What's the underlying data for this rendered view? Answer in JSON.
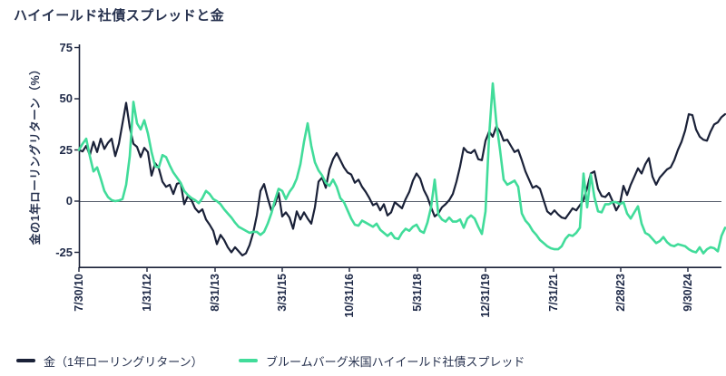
{
  "chart": {
    "title": "ハイイールド社債スプレッドと金",
    "y_axis": {
      "label": "金の1年ローリングリターン（%）",
      "ticks": [
        "75",
        "50",
        "25",
        "0",
        "-25"
      ]
    },
    "x_axis": {
      "ticks": [
        "7/30/10",
        "1/31/12",
        "8/31/13",
        "3/31/15",
        "10/31/16",
        "5/31/18",
        "12/31/19",
        "7/31/21",
        "2/28/23",
        "9/30/24"
      ]
    },
    "legend": {
      "gold": "金（1年ローリングリターン）",
      "spread": "ブルームバーグ米国ハイイールド社債スプレッド"
    }
  },
  "colors": {
    "gold_line": "#1a2138",
    "spread_line": "#41dc9a",
    "axis": "#1a2138",
    "zero_line": "#545b69",
    "tick_text": "#1e2947",
    "title_text": "#27324f"
  },
  "chart_data": {
    "type": "line",
    "title": "ハイイールド社債スプレッドと金",
    "xlabel": "",
    "ylabel": "金の1年ローリングリターン（%）",
    "ylim": [
      -32,
      76
    ],
    "y_ticks": [
      75,
      50,
      25,
      0,
      -25
    ],
    "zero_line": true,
    "grid": false,
    "legend_position": "bottom",
    "x_tick_labels": [
      "7/30/10",
      "1/31/12",
      "8/31/13",
      "3/31/15",
      "10/31/16",
      "5/31/18",
      "12/31/19",
      "7/31/21",
      "2/28/23",
      "9/30/24"
    ],
    "x_tick_indices": [
      0,
      18.75,
      37.5,
      56,
      74.5,
      93.25,
      112,
      130.75,
      149.25,
      167.75
    ],
    "series": [
      {
        "name": "金（1年ローリングリターン）",
        "color": "#1a2138",
        "values": [
          25,
          24.3,
          27,
          22.5,
          29,
          24,
          30.5,
          25.5,
          28.5,
          30.5,
          22,
          28,
          38,
          48,
          36,
          28,
          26.5,
          21.5,
          26,
          24,
          12.5,
          18.5,
          16,
          9.5,
          7,
          8,
          3.5,
          8.5,
          9,
          -1.5,
          2.5,
          0.5,
          -3.5,
          -5.5,
          -4,
          -9,
          -11.5,
          -14.5,
          -21,
          -16.5,
          -19,
          -22.5,
          -25,
          -22.5,
          -24.5,
          -26.5,
          -25.5,
          -21.5,
          -15.5,
          -7,
          5,
          8.3,
          1.5,
          -4.5,
          -1.5,
          4,
          -7.5,
          -5.5,
          -8,
          -13.5,
          -5,
          -9,
          -5.5,
          -8.5,
          -11,
          -3,
          9.5,
          11.5,
          6.5,
          15.5,
          20.5,
          23.5,
          20,
          16.5,
          14,
          13,
          9,
          10.5,
          7,
          4.5,
          1.5,
          -2,
          -1,
          -4.5,
          -1.5,
          -7,
          -5.5,
          -0.5,
          -2,
          -3.5,
          1,
          4.5,
          10,
          13.5,
          11,
          5.5,
          2,
          -3,
          -7.5,
          -6,
          -3,
          -1.5,
          0.5,
          3.5,
          9.5,
          17,
          26,
          24,
          23.5,
          25,
          20.5,
          20,
          29.5,
          34,
          31.5,
          36.5,
          34,
          29.5,
          30,
          27,
          24,
          25,
          20,
          14.5,
          10.5,
          6.5,
          7.5,
          6,
          0.5,
          -5,
          -6.5,
          -4.5,
          -6.5,
          -8,
          -8.5,
          -6,
          -3.5,
          -4.5,
          -2,
          0.5,
          6.5,
          13.5,
          14.5,
          6,
          2.5,
          2,
          4,
          0,
          -4.5,
          -1.5,
          7.5,
          3,
          8,
          12,
          16,
          13.5,
          18,
          21,
          12,
          8,
          11.5,
          13.5,
          15.5,
          16.5,
          20,
          25,
          29,
          34.5,
          42.5,
          42,
          35,
          31.5,
          30,
          29.5,
          34,
          37.5,
          38.5,
          41,
          42.5
        ]
      },
      {
        "name": "ブルームバーグ米国ハイイールド社債スプレッド",
        "color": "#41dc9a",
        "values": [
          25,
          28,
          30.5,
          22,
          14.5,
          16.5,
          11,
          5,
          2,
          0.5,
          0,
          0.3,
          1,
          8,
          22,
          48.5,
          38,
          35,
          39.5,
          33,
          24,
          17,
          16.5,
          22.5,
          21.5,
          17.5,
          14,
          11.5,
          9,
          5,
          3,
          1.5,
          0.5,
          -1,
          1.5,
          5,
          3.5,
          1,
          0,
          -1.5,
          -4,
          -6,
          -8,
          -10.5,
          -12.5,
          -13.5,
          -14.5,
          -15.5,
          -15,
          -15,
          -16.5,
          -15,
          -11,
          -6,
          0.5,
          6,
          5,
          1,
          4.5,
          7,
          11,
          18,
          29,
          38,
          27,
          19,
          15,
          12.5,
          9,
          7.5,
          10.5,
          7,
          1.5,
          -0.5,
          -4.5,
          -8.5,
          -11.5,
          -12,
          -9.5,
          -10.5,
          -11.5,
          -12.5,
          -11,
          -14,
          -15.5,
          -17,
          -15.5,
          -18,
          -18.5,
          -15.5,
          -13.5,
          -14.5,
          -12.5,
          -11.5,
          -14.5,
          -15.5,
          -10.5,
          -3,
          10.5,
          -6.5,
          -9,
          -10,
          -8,
          -10,
          -10,
          -9,
          -13,
          -8.5,
          -7,
          -8.5,
          -12.5,
          -16,
          -5,
          32,
          57.5,
          38,
          25,
          10.5,
          8,
          9,
          10,
          7,
          -6,
          -9.5,
          -11.5,
          -14.5,
          -16.5,
          -19,
          -20.5,
          -22,
          -23,
          -23.5,
          -23.5,
          -22,
          -18.5,
          -16.5,
          -17,
          -15.5,
          -13,
          13.5,
          -3,
          13,
          2,
          -5,
          -5.5,
          -1.5,
          -1.5,
          -0.5,
          -0.5,
          -1.5,
          -0.5,
          -6,
          -8.5,
          -5.5,
          -2.5,
          -11,
          -15.5,
          -16.5,
          -18.5,
          -20.5,
          -19.5,
          -17.5,
          -20,
          -21.5,
          -22,
          -21,
          -21.5,
          -22,
          -23.5,
          -24.5,
          -25,
          -22.5,
          -25.5,
          -23.5,
          -22.5,
          -23,
          -24.5,
          -17,
          -13
        ]
      }
    ]
  }
}
